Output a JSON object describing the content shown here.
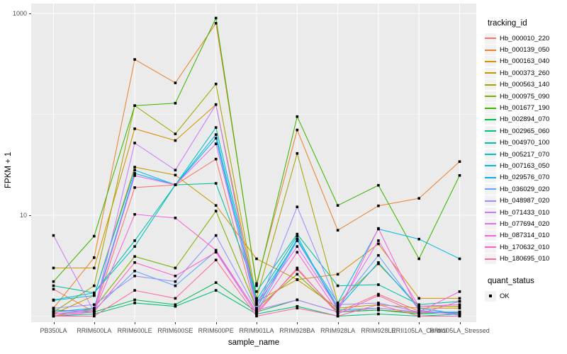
{
  "figure": {
    "background": "#FFFFFF",
    "panel_bg": "#EBEBEB",
    "grid_color": "#FFFFFF",
    "tick_color": "#333333",
    "tick_label_color": "#4D4D4D",
    "legend_key_bg": "#F2F2F2"
  },
  "chart_data": {
    "type": "line",
    "title": "",
    "xlabel": "sample_name",
    "ylabel": "FPKM + 1",
    "y_scale": "log10",
    "ylim": [
      0.87,
      1250
    ],
    "grid": true,
    "legend_position": "right",
    "y_major_ticks": [
      {
        "label": "1000",
        "value": 1000
      },
      {
        "label": "10",
        "value": 10
      }
    ],
    "y_minor_gridlines": [
      100,
      1
    ],
    "categories": [
      "PB350LA",
      "RRIM600LA",
      "RRIM600LE",
      "RRIM600SE",
      "RRIM600PE",
      "RRIM901LA",
      "RRIM928BA",
      "RRIM928LA",
      "RRIM928LE",
      "RRII105LA_Control",
      "RRII105LA_Stressed"
    ],
    "point_marker": {
      "shape": "square",
      "color": "#000000",
      "size": 3.6
    },
    "legend": {
      "series_title": "tracking_id",
      "status_title": "quant_status",
      "status_label": "OK",
      "status_marker_color": "#000000"
    },
    "series": [
      {
        "name": "Hb_000010_220",
        "color": "#F8766D",
        "values": [
          1.85,
          1.1,
          18.8,
          20,
          36,
          1.1,
          2.9,
          1.1,
          1.65,
          1.12,
          1.05
        ]
      },
      {
        "name": "Hb_000139_050",
        "color": "#EA8331",
        "values": [
          1.2,
          3.8,
          350,
          205,
          800,
          2.1,
          70,
          7.1,
          12.4,
          14.7,
          34
        ]
      },
      {
        "name": "Hb_000163_040",
        "color": "#D89000",
        "values": [
          3.0,
          3.0,
          72,
          55,
          125,
          1.4,
          2.3,
          2.6,
          5.2,
          1.5,
          1.5
        ]
      },
      {
        "name": "Hb_000373_260",
        "color": "#C09B00",
        "values": [
          1.05,
          1.6,
          30,
          25,
          12.5,
          3.7,
          2.3,
          1.2,
          1.3,
          1.2,
          1.2
        ]
      },
      {
        "name": "Hb_000563_140",
        "color": "#A3A500",
        "values": [
          1.1,
          2.0,
          122,
          64,
          200,
          1.5,
          41,
          1.35,
          3.3,
          1.25,
          1.25
        ]
      },
      {
        "name": "Hb_000975_090",
        "color": "#7CAE00",
        "values": [
          1.0,
          1.2,
          3.9,
          3.0,
          11,
          1.2,
          2.6,
          1.1,
          1.15,
          1.08,
          1.08
        ]
      },
      {
        "name": "Hb_001677_190",
        "color": "#39B600",
        "values": [
          2.2,
          6.2,
          122,
          129,
          900,
          2.0,
          95,
          12.5,
          19.8,
          3.7,
          24.8
        ]
      },
      {
        "name": "Hb_002894_070",
        "color": "#00BB4E",
        "values": [
          1.15,
          1.1,
          1.45,
          1.3,
          2.15,
          1.1,
          1.45,
          1.1,
          1.15,
          1.05,
          1.1
        ]
      },
      {
        "name": "Hb_002965_060",
        "color": "#00BF7D",
        "values": [
          1.0,
          1.05,
          1.35,
          1.25,
          1.8,
          1.05,
          1.25,
          1.0,
          1.05,
          1.0,
          1.05
        ]
      },
      {
        "name": "Hb_004970_100",
        "color": "#00C1A3",
        "values": [
          2.0,
          1.7,
          5.6,
          20,
          20.7,
          1.75,
          6.5,
          2.0,
          2.05,
          1.3,
          1.4
        ]
      },
      {
        "name": "Hb_005217_070",
        "color": "#00BFC4",
        "values": [
          1.45,
          1.7,
          4.9,
          20,
          74,
          1.45,
          6.2,
          1.15,
          1.2,
          1.1,
          1.1
        ]
      },
      {
        "name": "Hb_007163_050",
        "color": "#00B9E3",
        "values": [
          1.43,
          1.6,
          28,
          20,
          63,
          1.35,
          5.6,
          1.35,
          7.3,
          5.8,
          3.7
        ]
      },
      {
        "name": "Hb_029576_070",
        "color": "#00B0F6",
        "values": [
          1.1,
          1.2,
          26,
          20,
          58,
          1.2,
          5.8,
          1.2,
          3.4,
          1.2,
          1.05
        ]
      },
      {
        "name": "Hb_036029_020",
        "color": "#61A5FF",
        "values": [
          1.05,
          1.15,
          2.8,
          2.0,
          4.4,
          1.1,
          5.6,
          1.25,
          4.0,
          1.15,
          1.02
        ]
      },
      {
        "name": "Hb_048987_020",
        "color": "#9590FF",
        "values": [
          1.2,
          1.3,
          2.5,
          2.2,
          6.3,
          1.15,
          12.1,
          1.3,
          1.35,
          1.1,
          1.1
        ]
      },
      {
        "name": "Hb_071433_010",
        "color": "#C77CFF",
        "values": [
          6.3,
          1.1,
          52,
          28,
          125,
          1.15,
          1.45,
          1.1,
          1.2,
          1.1,
          1.05
        ]
      },
      {
        "name": "Hb_077694_020",
        "color": "#E76BF3",
        "values": [
          1.1,
          1.15,
          24.7,
          20,
          51,
          1.3,
          4.9,
          1.2,
          5.6,
          1.25,
          1.3
        ]
      },
      {
        "name": "Hb_087314_010",
        "color": "#FA62DB",
        "values": [
          1.05,
          1.1,
          10.2,
          9.4,
          4.5,
          1.1,
          4.3,
          1.1,
          7.4,
          1.1,
          1.75
        ]
      },
      {
        "name": "Hb_170632_010",
        "color": "#FF61C7",
        "values": [
          1.0,
          1.1,
          3.4,
          2.5,
          4.3,
          1.05,
          3.0,
          1.05,
          1.6,
          1.05,
          1.4
        ]
      },
      {
        "name": "Hb_180695_010",
        "color": "#FF68A1",
        "values": [
          1.0,
          1.0,
          1.8,
          1.5,
          3.6,
          1.0,
          1.2,
          1.0,
          1.3,
          1.0,
          1.0
        ]
      }
    ]
  }
}
